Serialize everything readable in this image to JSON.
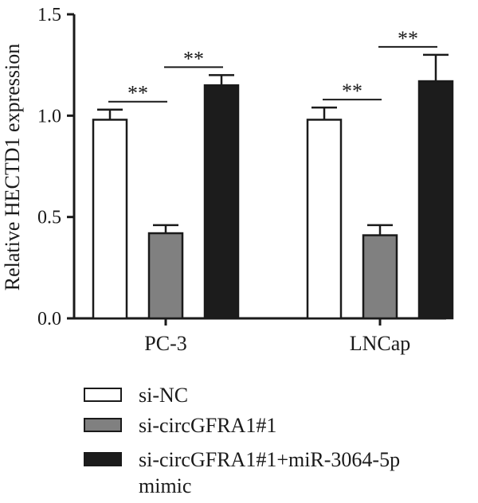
{
  "chart_data": {
    "type": "bar",
    "ylabel": "Relative HECTD1 expression",
    "ylim": [
      0,
      1.5
    ],
    "yticks": [
      "0.0",
      "0.5",
      "1.0",
      "1.5"
    ],
    "categories": [
      "PC-3",
      "LNCap"
    ],
    "series": [
      {
        "name": "si-NC",
        "values": [
          0.98,
          0.98
        ],
        "errors": [
          0.05,
          0.06
        ],
        "color": "#ffffff"
      },
      {
        "name": "si-circGFRA1#1",
        "values": [
          0.42,
          0.41
        ],
        "errors": [
          0.04,
          0.05
        ],
        "color": "#808080"
      },
      {
        "name": "si-circGFRA1#1+miR-3064-5p mimic",
        "values": [
          1.15,
          1.17
        ],
        "errors": [
          0.05,
          0.13
        ],
        "color": "#1c1c1c"
      }
    ],
    "significance": [
      {
        "category": 0,
        "from": 0,
        "to": 1,
        "label": "**"
      },
      {
        "category": 0,
        "from": 1,
        "to": 2,
        "label": "**"
      },
      {
        "category": 1,
        "from": 0,
        "to": 1,
        "label": "**"
      },
      {
        "category": 1,
        "from": 1,
        "to": 2,
        "label": "**"
      }
    ],
    "legend": {
      "position": "bottom",
      "items": [
        {
          "lines": [
            "si-NC"
          ]
        },
        {
          "lines": [
            "si-circGFRA1#1"
          ]
        },
        {
          "lines": [
            "si-circGFRA1#1+miR-3064-5p",
            "mimic"
          ]
        }
      ]
    }
  }
}
